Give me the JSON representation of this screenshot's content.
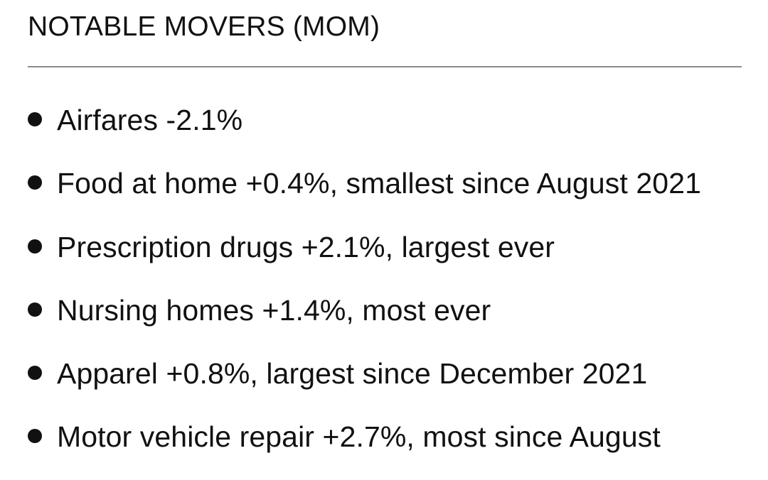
{
  "title": "NOTABLE MOVERS (MOM)",
  "items": [
    "Airfares -2.1%",
    "Food at home +0.4%, smallest since August 2021",
    "Prescription drugs +2.1%, largest ever",
    "Nursing homes +1.4%, most ever",
    "Apparel +0.8%, largest since December 2021",
    "Motor vehicle repair +2.7%, most since August"
  ]
}
